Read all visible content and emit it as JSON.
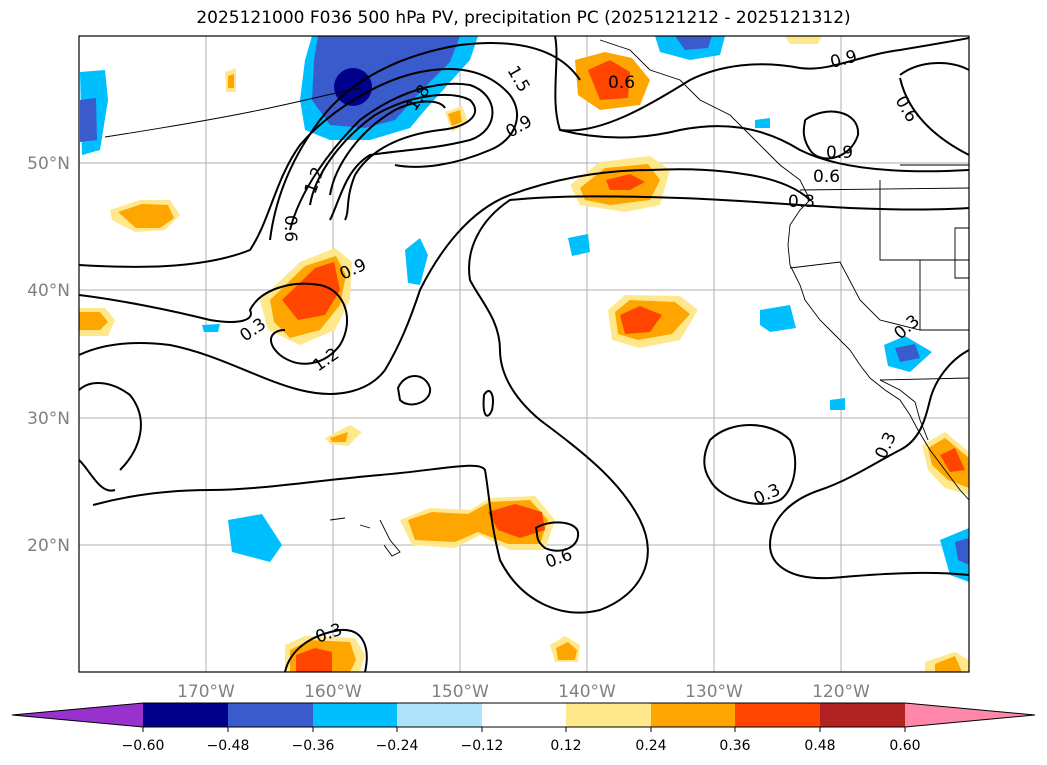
{
  "title": "2025121000 F036 500 hPa PV, precipitation PC (2025121212 - 2025121312)",
  "map": {
    "lat_labels": [
      "50°N",
      "40°N",
      "30°N",
      "20°N"
    ],
    "lon_labels": [
      "170°W",
      "160°W",
      "150°W",
      "140°W",
      "130°W",
      "120°W"
    ],
    "extent": {
      "lon_min": -180,
      "lon_max": -110,
      "lat_min": 10,
      "lat_max": 60
    }
  },
  "pv_contour_labels": [
    "1.5",
    "1.8",
    "0.9",
    "1.2",
    "0.6",
    "0.9",
    "0.3",
    "1.2",
    "0.6",
    "0.9",
    "0.6",
    "0.3",
    "0.9",
    "0.6",
    "0.3",
    "0.3",
    "0.3",
    "0.6",
    "0.3"
  ],
  "colorbar": {
    "ticks": [
      "−0.60",
      "−0.48",
      "−0.36",
      "−0.24",
      "−0.12",
      "0.12",
      "0.24",
      "0.36",
      "0.48",
      "0.60"
    ],
    "colors": [
      "#9932cc",
      "#00008b",
      "#3a5bcc",
      "#00bfff",
      "#aee3fa",
      "#ffffff",
      "#ffe88c",
      "#ffa500",
      "#ff4500",
      "#b22222",
      "#ff88aa"
    ]
  }
}
